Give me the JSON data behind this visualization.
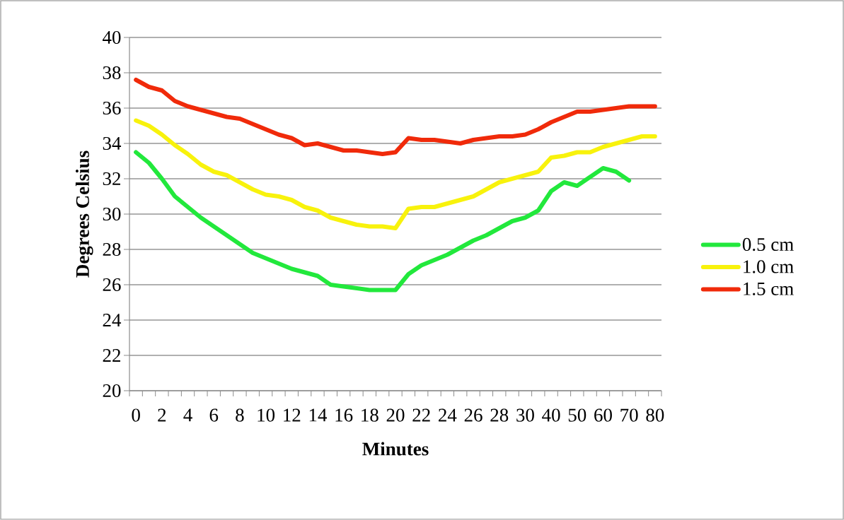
{
  "chart_data": {
    "type": "line",
    "xlabel": "Minutes",
    "ylabel": "Degrees Celsius",
    "categories": [
      "0",
      null,
      "2",
      null,
      "4",
      null,
      "6",
      null,
      "8",
      null,
      "10",
      null,
      "12",
      null,
      "14",
      null,
      "16",
      null,
      "18",
      null,
      "20",
      null,
      "22",
      null,
      "24",
      null,
      "26",
      null,
      "28",
      null,
      "30",
      null,
      "40",
      null,
      "50",
      null,
      "60",
      null,
      "70",
      null,
      "80"
    ],
    "series": [
      {
        "name": "0.5 cm",
        "color": "#22e83c",
        "values": [
          33.5,
          32.9,
          32.0,
          31.0,
          30.4,
          29.8,
          29.3,
          28.8,
          28.3,
          27.8,
          27.5,
          27.2,
          26.9,
          26.7,
          26.5,
          26.0,
          25.9,
          25.8,
          25.7,
          25.7,
          25.7,
          26.6,
          27.1,
          27.4,
          27.7,
          28.1,
          28.5,
          28.8,
          29.2,
          29.6,
          29.8,
          30.2,
          31.3,
          31.8,
          31.6,
          32.1,
          32.6,
          32.4,
          31.9,
          null,
          null
        ]
      },
      {
        "name": "1.0 cm",
        "color": "#f8f20c",
        "values": [
          35.3,
          35.0,
          34.5,
          33.9,
          33.4,
          32.8,
          32.4,
          32.2,
          31.8,
          31.4,
          31.1,
          31.0,
          30.8,
          30.4,
          30.2,
          29.8,
          29.6,
          29.4,
          29.3,
          29.3,
          29.2,
          30.3,
          30.4,
          30.4,
          30.6,
          30.8,
          31.0,
          31.4,
          31.8,
          32.0,
          32.2,
          32.4,
          33.2,
          33.3,
          33.5,
          33.5,
          33.8,
          34.0,
          34.2,
          34.4,
          34.4
        ]
      },
      {
        "name": "1.5 cm",
        "color": "#f02a0a",
        "values": [
          37.6,
          37.2,
          37.0,
          36.4,
          36.1,
          35.9,
          35.7,
          35.5,
          35.4,
          35.1,
          34.8,
          34.5,
          34.3,
          33.9,
          34.0,
          33.8,
          33.6,
          33.6,
          33.5,
          33.4,
          33.5,
          34.3,
          34.2,
          34.2,
          34.1,
          34.0,
          34.2,
          34.3,
          34.4,
          34.4,
          34.5,
          34.8,
          35.2,
          35.5,
          35.8,
          35.8,
          35.9,
          36.0,
          36.1,
          36.1,
          36.1
        ]
      }
    ],
    "ylim": [
      20,
      40
    ],
    "yticks": [
      20,
      22,
      24,
      26,
      28,
      30,
      32,
      34,
      36,
      38,
      40
    ],
    "grid": "y",
    "legend": "right",
    "marker": "none",
    "line_style": "solid"
  }
}
